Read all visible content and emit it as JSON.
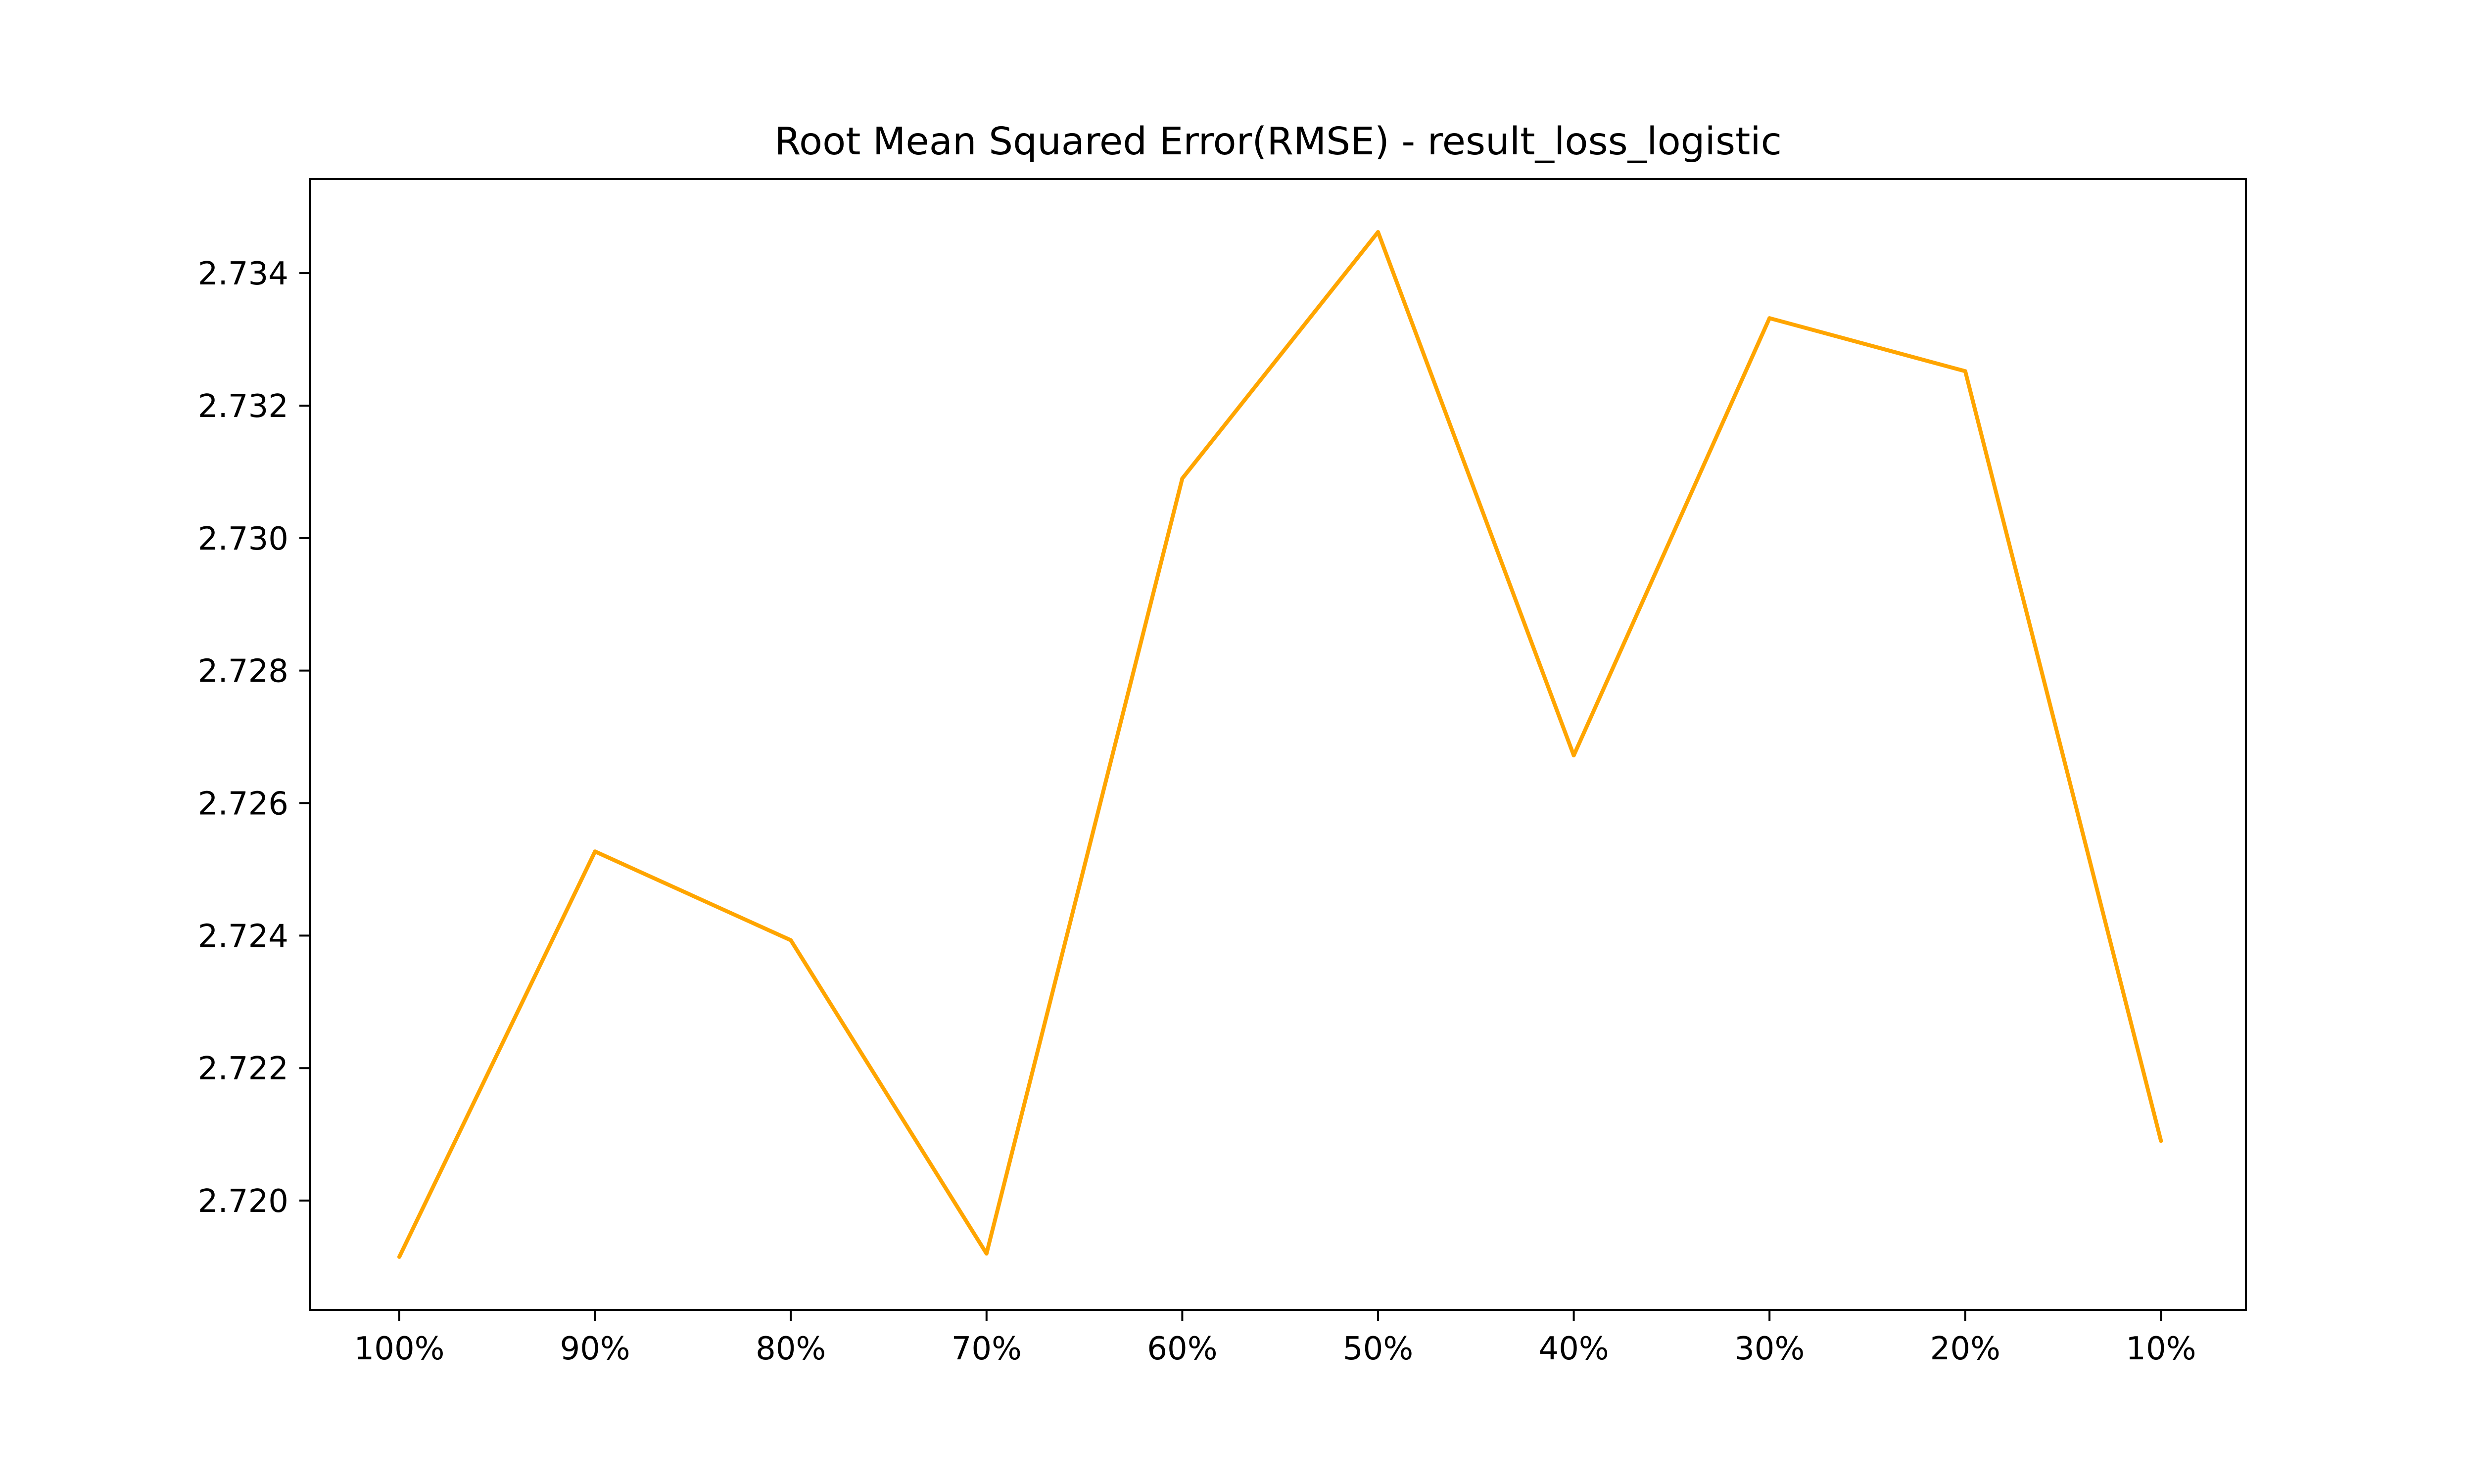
{
  "chart_data": {
    "type": "line",
    "title": "Root Mean Squared Error(RMSE) - result_loss_logistic",
    "xlabel": "",
    "ylabel": "",
    "categories": [
      "100%",
      "90%",
      "80%",
      "70%",
      "60%",
      "50%",
      "40%",
      "30%",
      "20%",
      "10%"
    ],
    "series": [
      {
        "values": [
          2.71915,
          2.72527,
          2.72393,
          2.7192,
          2.7309,
          2.73462,
          2.72672,
          2.73332,
          2.73252,
          2.7209
        ],
        "color": "#ffa500"
      }
    ],
    "yticks": [
      "2.720",
      "2.722",
      "2.724",
      "2.726",
      "2.728",
      "2.730",
      "2.732",
      "2.734"
    ],
    "ytick_values": [
      2.72,
      2.722,
      2.724,
      2.726,
      2.728,
      2.73,
      2.732,
      2.734
    ],
    "ylim": [
      2.71835,
      2.73542
    ],
    "grid": false,
    "legend": "none"
  }
}
